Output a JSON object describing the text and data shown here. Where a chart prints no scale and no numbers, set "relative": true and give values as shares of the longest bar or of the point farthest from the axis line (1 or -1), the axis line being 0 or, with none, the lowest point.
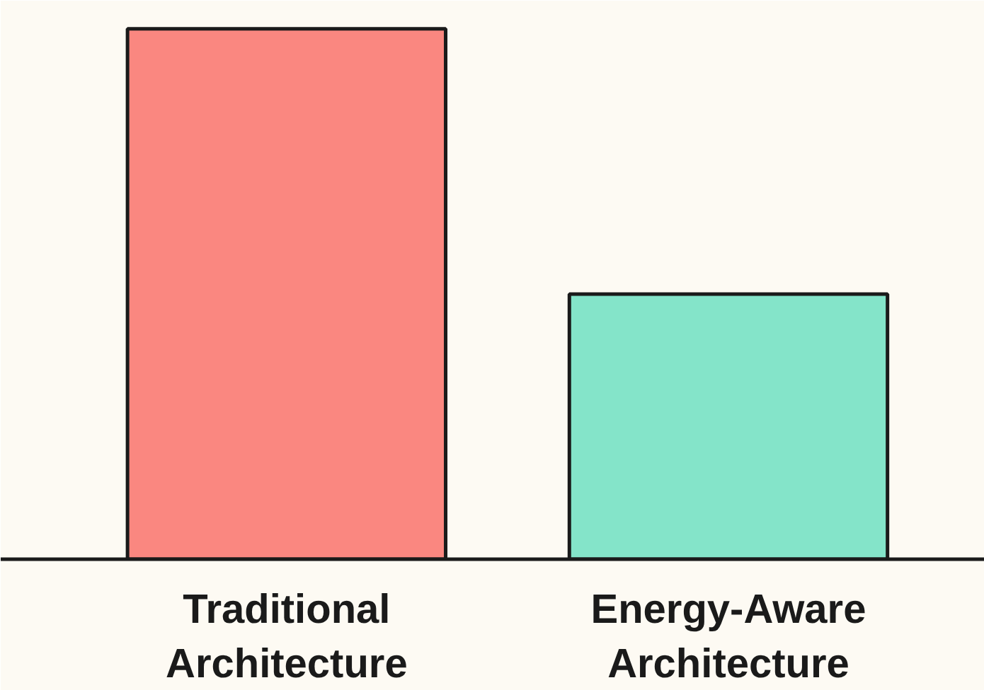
{
  "chart_data": {
    "type": "bar",
    "relative": true,
    "categories": [
      "Traditional Architecture",
      "Energy-Aware Architecture"
    ],
    "values": [
      1,
      0.5
    ],
    "colors": [
      "#fa8780",
      "#84e4c9"
    ]
  }
}
